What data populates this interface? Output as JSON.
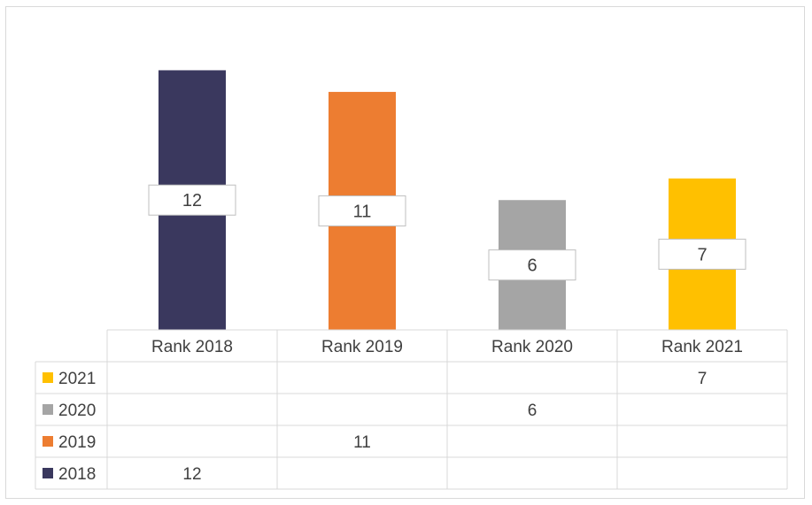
{
  "chart_data": {
    "type": "bar",
    "categories": [
      "Rank 2018",
      "Rank 2019",
      "Rank 2020",
      "Rank 2021"
    ],
    "series": [
      {
        "name": "2021",
        "color": "#ffc000",
        "values": [
          null,
          null,
          null,
          7
        ]
      },
      {
        "name": "2020",
        "color": "#a5a5a5",
        "values": [
          null,
          null,
          6,
          null
        ]
      },
      {
        "name": "2019",
        "color": "#ed7d31",
        "values": [
          null,
          11,
          null,
          null
        ]
      },
      {
        "name": "2018",
        "color": "#3a385e",
        "values": [
          12,
          null,
          null,
          null
        ]
      }
    ],
    "ylim": [
      0,
      12.1
    ],
    "grid": false,
    "legend": "data-table-left",
    "data_labels": true,
    "data_table": true
  }
}
